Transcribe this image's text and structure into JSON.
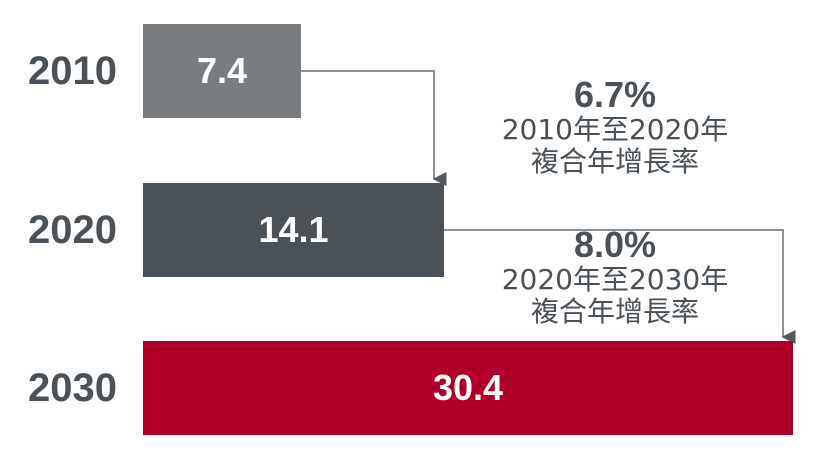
{
  "chart_data": {
    "type": "bar",
    "orientation": "horizontal",
    "categories": [
      "2010",
      "2020",
      "2030"
    ],
    "values": [
      7.4,
      14.1,
      30.4
    ],
    "colors": [
      "#7a7d80",
      "#4a5157",
      "#b0002a"
    ],
    "title": "",
    "xlabel": "",
    "ylabel": "",
    "annotations": [
      {
        "from": "2010",
        "to": "2020",
        "rate": "6.7%",
        "period": "2010年至2020年",
        "desc": "複合年增長率"
      },
      {
        "from": "2020",
        "to": "2030",
        "rate": "8.0%",
        "period": "2020年至2030年",
        "desc": "複合年增長率"
      }
    ]
  }
}
